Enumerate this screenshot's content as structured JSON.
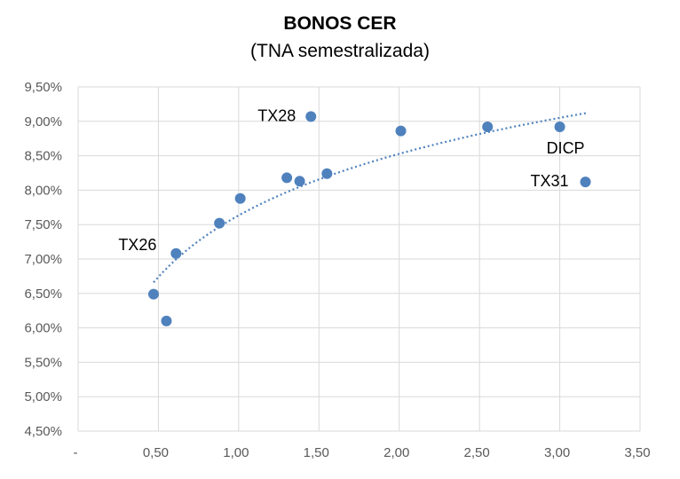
{
  "chart_data": {
    "type": "scatter",
    "title": "BONOS CER",
    "subtitle": "(TNA semestralizada)",
    "xlim": [
      0,
      3.5
    ],
    "ylim": [
      4.5,
      9.5
    ],
    "x_ticks": [
      "-",
      "0,50",
      "1,00",
      "1,50",
      "2,00",
      "2,50",
      "3,00",
      "3,50"
    ],
    "y_ticks": [
      "9,50%",
      "9,00%",
      "8,50%",
      "8,00%",
      "7,50%",
      "7,00%",
      "6,50%",
      "6,00%",
      "5,50%",
      "5,00%",
      "4,50%"
    ],
    "grid": true,
    "marker_color": "#4f81bd",
    "trendline": {
      "style": "dotted",
      "kind": "logarithmic",
      "x_range": [
        0.47,
        3.17
      ]
    },
    "points": [
      {
        "x": 0.47,
        "y": 6.49,
        "label": ""
      },
      {
        "x": 0.55,
        "y": 6.1,
        "label": ""
      },
      {
        "x": 0.61,
        "y": 7.08,
        "label": "TX26"
      },
      {
        "x": 0.88,
        "y": 7.52,
        "label": ""
      },
      {
        "x": 1.01,
        "y": 7.88,
        "label": ""
      },
      {
        "x": 1.3,
        "y": 8.18,
        "label": ""
      },
      {
        "x": 1.38,
        "y": 8.13,
        "label": ""
      },
      {
        "x": 1.45,
        "y": 9.07,
        "label": "TX28"
      },
      {
        "x": 1.55,
        "y": 8.24,
        "label": ""
      },
      {
        "x": 2.01,
        "y": 8.86,
        "label": ""
      },
      {
        "x": 2.55,
        "y": 8.92,
        "label": ""
      },
      {
        "x": 3.0,
        "y": 8.92,
        "label": "DICP"
      },
      {
        "x": 3.16,
        "y": 8.12,
        "label": "TX31"
      }
    ]
  }
}
